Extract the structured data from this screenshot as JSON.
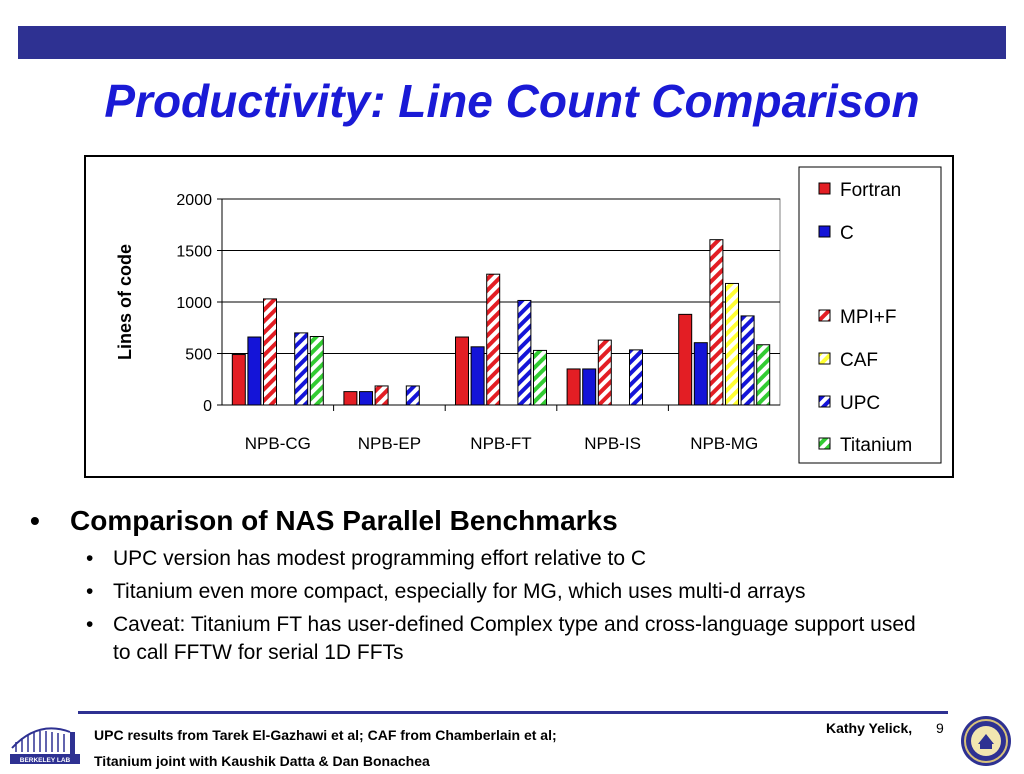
{
  "slide": {
    "title": "Productivity: Line Count Comparison",
    "page_number": "9",
    "author": "Kathy Yelick,",
    "footer_line1": "UPC results from Tarek El-Gazhawi et al; CAF from Chamberlain et al;",
    "footer_line2": "Titanium joint  with Kaushik Datta & Dan Bonachea",
    "logo_text": "BERKELEY LAB",
    "bar_color": "#2e3192",
    "title_color": "#1a1ad6"
  },
  "bullets": {
    "main": "Comparison of NAS Parallel Benchmarks",
    "subs": [
      "UPC version has modest programming effort relative to C",
      "Titanium even more compact, especially for MG, which uses multi-d arrays",
      "Caveat: Titanium FT has user-defined Complex type and cross-language support used to call FFTW for serial 1D FFTs"
    ]
  },
  "chart_data": {
    "type": "bar",
    "ylabel": "Lines of code",
    "ylim": [
      0,
      2000
    ],
    "yticks": [
      0,
      500,
      1000,
      1500,
      2000
    ],
    "grid": true,
    "legend_position": "right",
    "categories": [
      "NPB-CG",
      "NPB-EP",
      "NPB-FT",
      "NPB-IS",
      "NPB-MG"
    ],
    "series": [
      {
        "name": "Fortran",
        "color": "#e31e24",
        "pattern": "solid",
        "values": [
          490,
          130,
          660,
          350,
          880
        ]
      },
      {
        "name": "C",
        "color": "#1414d8",
        "pattern": "solid",
        "values": [
          660,
          130,
          565,
          350,
          605
        ]
      },
      {
        "name": "MPI+F",
        "color": "#e31e24",
        "pattern": "hatched",
        "values": [
          1030,
          185,
          1270,
          630,
          1605
        ]
      },
      {
        "name": "CAF",
        "color": "#ffff33",
        "pattern": "hatched",
        "values": [
          null,
          null,
          null,
          null,
          1180
        ]
      },
      {
        "name": "UPC",
        "color": "#1414d8",
        "pattern": "hatched",
        "values": [
          700,
          185,
          1015,
          535,
          865
        ]
      },
      {
        "name": "Titanium",
        "color": "#33cc33",
        "pattern": "hatched",
        "values": [
          665,
          null,
          530,
          null,
          585
        ]
      }
    ]
  }
}
